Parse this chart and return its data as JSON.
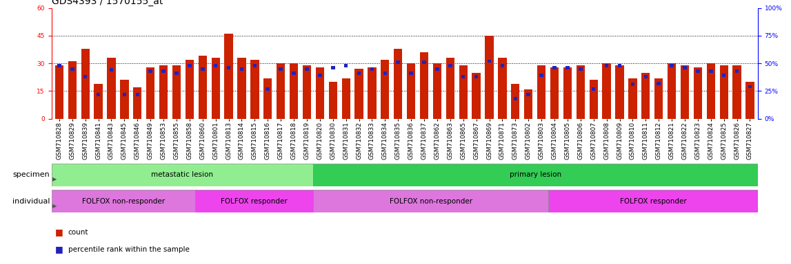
{
  "title": "GDS4393 / 1570155_at",
  "samples": [
    "GSM710828",
    "GSM710829",
    "GSM710839",
    "GSM710841",
    "GSM710843",
    "GSM710845",
    "GSM710846",
    "GSM710849",
    "GSM710853",
    "GSM710855",
    "GSM710858",
    "GSM710860",
    "GSM710801",
    "GSM710813",
    "GSM710814",
    "GSM710815",
    "GSM710816",
    "GSM710817",
    "GSM710818",
    "GSM710819",
    "GSM710820",
    "GSM710830",
    "GSM710831",
    "GSM710832",
    "GSM710833",
    "GSM710834",
    "GSM710835",
    "GSM710836",
    "GSM710837",
    "GSM710862",
    "GSM710863",
    "GSM710865",
    "GSM710867",
    "GSM710869",
    "GSM710871",
    "GSM710873",
    "GSM710802",
    "GSM710803",
    "GSM710804",
    "GSM710805",
    "GSM710806",
    "GSM710807",
    "GSM710808",
    "GSM710809",
    "GSM710810",
    "GSM710811",
    "GSM710812",
    "GSM710821",
    "GSM710822",
    "GSM710823",
    "GSM710824",
    "GSM710825",
    "GSM710826",
    "GSM710827"
  ],
  "red_bars": [
    29,
    31,
    38,
    19,
    33,
    21,
    17,
    28,
    29,
    29,
    32,
    34,
    33,
    46,
    33,
    32,
    22,
    30,
    30,
    29,
    28,
    20,
    22,
    27,
    28,
    32,
    38,
    30,
    36,
    30,
    33,
    29,
    25,
    45,
    33,
    19,
    16,
    29,
    28,
    28,
    29,
    21,
    30,
    29,
    22,
    25,
    22,
    30,
    29,
    28,
    30,
    29,
    29,
    20
  ],
  "blue_percentiles": [
    48,
    45,
    38,
    22,
    44,
    22,
    22,
    43,
    43,
    41,
    48,
    45,
    48,
    46,
    45,
    48,
    27,
    45,
    41,
    45,
    39,
    46,
    48,
    41,
    45,
    41,
    51,
    41,
    51,
    45,
    48,
    38,
    38,
    52,
    48,
    18,
    22,
    39,
    46,
    46,
    45,
    27,
    48,
    48,
    31,
    38,
    32,
    48,
    46,
    43,
    43,
    39,
    43,
    29
  ],
  "ylim_left": [
    0,
    60
  ],
  "ylim_right": [
    0,
    100
  ],
  "yticks_left": [
    0,
    15,
    30,
    45,
    60
  ],
  "yticks_right": [
    0,
    25,
    50,
    75,
    100
  ],
  "grid_lines": [
    15,
    30,
    45
  ],
  "specimen_groups": [
    {
      "label": "metastatic lesion",
      "start": 0,
      "end": 20,
      "color": "#90EE90"
    },
    {
      "label": "primary lesion",
      "start": 20,
      "end": 54,
      "color": "#33CC55"
    }
  ],
  "individual_groups": [
    {
      "label": "FOLFOX non-responder",
      "start": 0,
      "end": 11,
      "color": "#DD77DD"
    },
    {
      "label": "FOLFOX responder",
      "start": 11,
      "end": 20,
      "color": "#EE44EE"
    },
    {
      "label": "FOLFOX non-responder",
      "start": 20,
      "end": 38,
      "color": "#DD77DD"
    },
    {
      "label": "FOLFOX responder",
      "start": 38,
      "end": 54,
      "color": "#EE44EE"
    }
  ],
  "bar_color_red": "#CC2200",
  "bar_color_blue": "#2222BB",
  "title_fontsize": 10,
  "tick_fontsize": 6.5,
  "label_fontsize": 8,
  "annot_fontsize": 7.5,
  "bar_width": 0.65,
  "figure_bg": "#F5F5F5"
}
